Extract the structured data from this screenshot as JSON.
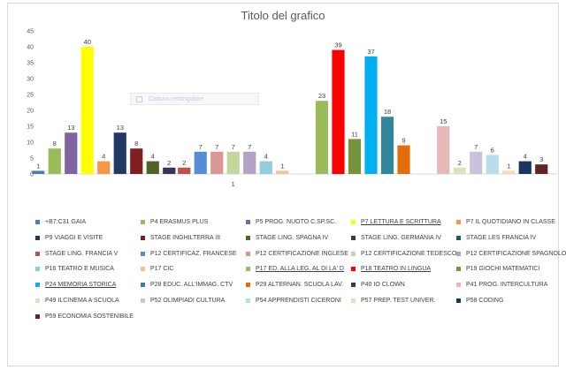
{
  "chart_data": {
    "type": "bar",
    "title": "Titolo del grafico",
    "ylim": [
      0,
      45
    ],
    "yticks": [
      0,
      5,
      10,
      15,
      20,
      25,
      30,
      35,
      40,
      45
    ],
    "grid": false,
    "legend_position": "bottom",
    "groups": [
      {
        "values": [
          1,
          8,
          13,
          40,
          4,
          13,
          8,
          4,
          2
        ],
        "colors": [
          "#4a7ebb",
          "#9bbb59",
          "#8064a2",
          "#ffff00",
          "#f79646",
          "#1f3864",
          "#7f1f1f",
          "#4f6228",
          "#3f3151"
        ]
      },
      {
        "values": [
          2,
          7,
          7,
          7,
          7,
          4,
          1
        ],
        "colors": [
          "#c0504d",
          "#558ed5",
          "#d99694",
          "#c3d69b",
          "#b3a2c7",
          "#93cddd",
          "#fac090"
        ]
      },
      {
        "values": [
          23,
          39,
          11,
          37,
          18,
          9
        ],
        "colors": [
          "#9bbb59",
          "#ff0000",
          "#77933c",
          "#00b0f0",
          "#31859c",
          "#e46c0a"
        ]
      },
      {
        "values": [
          15,
          2,
          7,
          6,
          1,
          4,
          3
        ],
        "colors": [
          "#e6b9b8",
          "#d7e4bd",
          "#ccc1da",
          "#b7dee8",
          "#fcd5b5",
          "#17375e",
          "#632523"
        ]
      }
    ],
    "series": [
      {
        "name": "+B7:C31    GAIA",
        "color": "#4a7ebb"
      },
      {
        "name": "P4   ERASMUS PLUS",
        "color": "#9bbb59"
      },
      {
        "name": "P5   PROG. NUOTO C.SP.SC.",
        "color": "#8064a2"
      },
      {
        "name": "P7   LETTURA E SCRITTURA",
        "color": "#ffff00",
        "underline": true
      },
      {
        "name": "P7   IL QUOTIDIANO IN CLASSE",
        "color": "#f79646"
      },
      {
        "name": "P9   VIAGGI E VISITE",
        "color": "#1f3864"
      },
      {
        "name": "STAGE INGHILTERRA III",
        "color": "#7f1f1f"
      },
      {
        "name": "STAGE LING. SPAGNA IV",
        "color": "#4f6228"
      },
      {
        "name": "STAGE LING.  GERMANIA IV",
        "color": "#3f3151"
      },
      {
        "name": "STAGE LES FRANCIA IV",
        "color": "#215968"
      },
      {
        "name": "STAGE LING. FRANCIA V",
        "color": "#c0504d"
      },
      {
        "name": "P12 CERTIFICAZ. FRANCESE",
        "color": "#558ed5"
      },
      {
        "name": "P12 CERTIFICAZIONE INGLESE",
        "color": "#d99694"
      },
      {
        "name": "P12 CERTIFICAZIONE TEDESCO",
        "color": "#c3d69b"
      },
      {
        "name": "P12 CERTIFICAZIONE SPAGNOLO",
        "color": "#b3a2c7"
      },
      {
        "name": "P16  TEATRO E MUSICA",
        "color": "#93cddd"
      },
      {
        "name": "P17 CIC",
        "color": "#fac090"
      },
      {
        "name": "P17 ED. ALLA LEG. AL DI LA' D",
        "color": "#9bbb59",
        "underline": true
      },
      {
        "name": "P18 TEATRO IN LINGUA",
        "color": "#ff0000",
        "underline": true
      },
      {
        "name": "P19  GIOCHI MATEMATICI",
        "color": "#77933c"
      },
      {
        "name": "P24  MEMORIA STORICA",
        "color": "#00b0f0",
        "underline": true
      },
      {
        "name": "P28 EDUC.  ALL'IMMAG. CTV",
        "color": "#31859c"
      },
      {
        "name": "P29  ALTERNAN. SCUOLA LAV.",
        "color": "#e46c0a"
      },
      {
        "name": "P40 IO CLOWN",
        "color": "#254061"
      },
      {
        "name": "P41  PROG. INTERCULTURA",
        "color": "#e6b9b8"
      },
      {
        "name": "P49 ILCINEMA A SCUOLA",
        "color": "#d7e4bd"
      },
      {
        "name": "P52 OLIMPIADI CULTURA",
        "color": "#ccc1da"
      },
      {
        "name": "P54  APPRENDISTI CICERONI",
        "color": "#b7dee8"
      },
      {
        "name": "P57  PREP.  TEST UNIVER.",
        "color": "#fcd5b5"
      },
      {
        "name": "P58 CODING",
        "color": "#17375e"
      },
      {
        "name": "P59  ECONOMIA SOSTENIBILE",
        "color": "#632523"
      }
    ]
  },
  "overlay": {
    "text": "Cattura rettangolare"
  }
}
